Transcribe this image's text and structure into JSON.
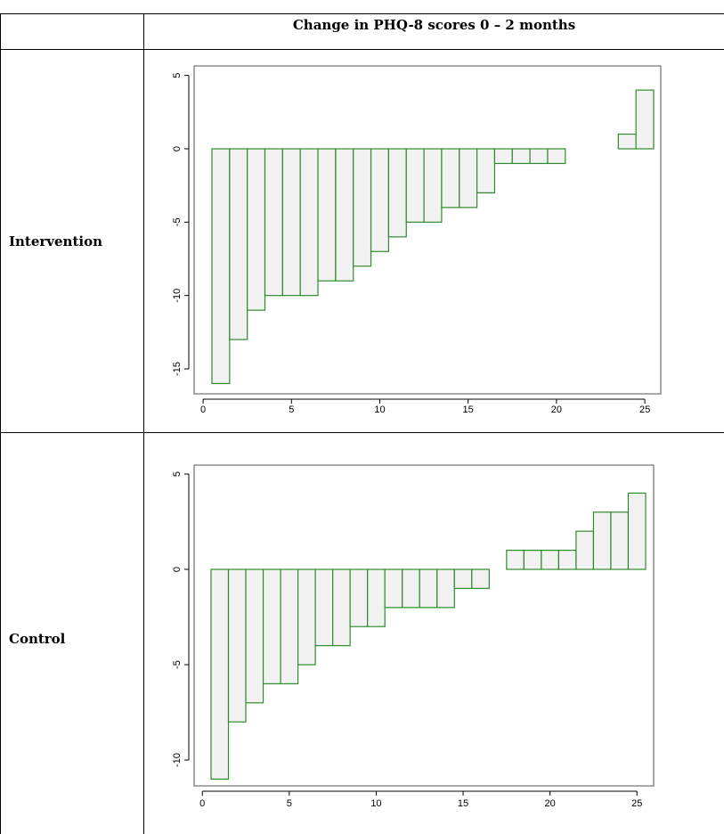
{
  "header": {
    "column_title": "Change in PHQ-8 scores 0 – 2 months"
  },
  "rows": [
    {
      "label": "Intervention"
    },
    {
      "label": "Control"
    }
  ],
  "colors": {
    "bar_stroke": "#2e8b2e",
    "bar_fill": "#f2f2f2",
    "frame": "#555555",
    "table_rule": "#000000"
  },
  "chart_data": [
    {
      "type": "bar",
      "x": [
        1,
        2,
        3,
        4,
        5,
        6,
        7,
        8,
        9,
        10,
        11,
        12,
        13,
        14,
        15,
        16,
        17,
        18,
        19,
        20,
        21,
        22,
        23,
        24,
        25
      ],
      "values": [
        -16,
        -13,
        -11,
        -10,
        -10,
        -10,
        -9,
        -9,
        -8,
        -7,
        -6,
        -5,
        -5,
        -4,
        -4,
        -3,
        -1,
        -1,
        -1,
        -1,
        0,
        0,
        0,
        1,
        4
      ],
      "xlim": [
        0.5,
        25.5
      ],
      "ylim": [
        -16,
        5
      ],
      "xticks": [
        0,
        5,
        10,
        15,
        20,
        25
      ],
      "yticks": [
        5,
        0,
        -5,
        -10,
        -15
      ],
      "xtick_labels": [
        "0",
        "5",
        "10",
        "15",
        "20",
        "25"
      ],
      "ytick_labels": [
        "5",
        "0",
        "-5",
        "-10",
        "-15"
      ],
      "grid": false,
      "title": "",
      "xlabel": "",
      "ylabel": ""
    },
    {
      "type": "bar",
      "x": [
        1,
        2,
        3,
        4,
        5,
        6,
        7,
        8,
        9,
        10,
        11,
        12,
        13,
        14,
        15,
        16,
        17,
        18,
        19,
        20,
        21,
        22,
        23,
        24,
        25
      ],
      "values": [
        -11,
        -8,
        -7,
        -6,
        -6,
        -5,
        -4,
        -4,
        -3,
        -3,
        -2,
        -2,
        -2,
        -2,
        -1,
        -1,
        0,
        1,
        1,
        1,
        1,
        2,
        3,
        3,
        4
      ],
      "xlim": [
        0.5,
        25.5
      ],
      "ylim": [
        -11,
        5
      ],
      "xticks": [
        0,
        5,
        10,
        15,
        20,
        25
      ],
      "yticks": [
        5,
        0,
        -5,
        -10
      ],
      "xtick_labels": [
        "0",
        "5",
        "10",
        "15",
        "20",
        "25"
      ],
      "ytick_labels": [
        "5",
        "0",
        "-5",
        "-10"
      ],
      "grid": false,
      "title": "",
      "xlabel": "",
      "ylabel": ""
    }
  ]
}
